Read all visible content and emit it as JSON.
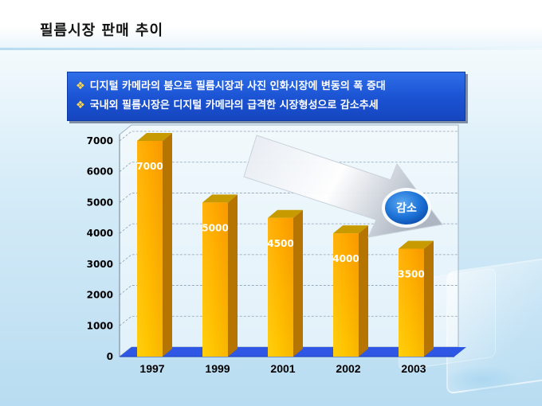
{
  "header": {
    "title": "필름시장 판매 추이"
  },
  "bullets": [
    "디지털 카메라의 붐으로 필름시장과 사진 인화시장에 변동의 폭 증대",
    "국내외 필름시장은 디지털 카메라의 급격한 시장형성으로 감소추세"
  ],
  "bullet_mark": "❖",
  "badge": {
    "label": "감소"
  },
  "colors": {
    "bar_front": "#f8a400",
    "bar_side": "#b57500",
    "bar_top": "#c79a00",
    "floor": "#2f57e6",
    "bullet_box": "#1a52d2",
    "badge": "#1f74d8"
  },
  "chart_data": {
    "type": "bar",
    "categories": [
      "1997",
      "1999",
      "2001",
      "2002",
      "2003"
    ],
    "values": [
      7000,
      5000,
      4500,
      4000,
      3500
    ],
    "data_labels": [
      "7000",
      "5000",
      "4500",
      "4000",
      "3500"
    ],
    "yticks": [
      0,
      1000,
      2000,
      3000,
      4000,
      5000,
      6000,
      7000
    ],
    "ylim": [
      0,
      7000
    ],
    "title": "",
    "xlabel": "",
    "ylabel": "",
    "grid": true,
    "style": "3d-column",
    "trend_arrow": "decreasing"
  }
}
